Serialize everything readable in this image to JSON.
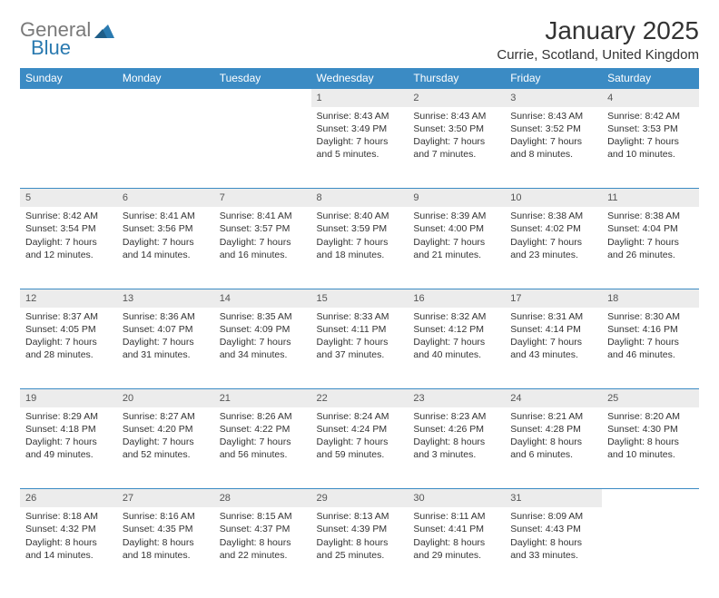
{
  "logo": {
    "word1": "General",
    "word2": "Blue"
  },
  "title": "January 2025",
  "location": "Currie, Scotland, United Kingdom",
  "colors": {
    "header_bg": "#3b8bc4",
    "header_text": "#ffffff",
    "daynum_bg": "#ececec",
    "page_bg": "#ffffff",
    "logo_gray": "#7a7a7a",
    "logo_blue": "#2a7ab0"
  },
  "fonts": {
    "month_title_pt": 28,
    "location_pt": 15,
    "weekday_pt": 12,
    "daynum_pt": 11,
    "body_pt": 10.5
  },
  "weekdays": [
    "Sunday",
    "Monday",
    "Tuesday",
    "Wednesday",
    "Thursday",
    "Friday",
    "Saturday"
  ],
  "weeks": [
    [
      null,
      null,
      null,
      {
        "n": "1",
        "sr": "8:43 AM",
        "ss": "3:49 PM",
        "dl": "7 hours and 5 minutes."
      },
      {
        "n": "2",
        "sr": "8:43 AM",
        "ss": "3:50 PM",
        "dl": "7 hours and 7 minutes."
      },
      {
        "n": "3",
        "sr": "8:43 AM",
        "ss": "3:52 PM",
        "dl": "7 hours and 8 minutes."
      },
      {
        "n": "4",
        "sr": "8:42 AM",
        "ss": "3:53 PM",
        "dl": "7 hours and 10 minutes."
      }
    ],
    [
      {
        "n": "5",
        "sr": "8:42 AM",
        "ss": "3:54 PM",
        "dl": "7 hours and 12 minutes."
      },
      {
        "n": "6",
        "sr": "8:41 AM",
        "ss": "3:56 PM",
        "dl": "7 hours and 14 minutes."
      },
      {
        "n": "7",
        "sr": "8:41 AM",
        "ss": "3:57 PM",
        "dl": "7 hours and 16 minutes."
      },
      {
        "n": "8",
        "sr": "8:40 AM",
        "ss": "3:59 PM",
        "dl": "7 hours and 18 minutes."
      },
      {
        "n": "9",
        "sr": "8:39 AM",
        "ss": "4:00 PM",
        "dl": "7 hours and 21 minutes."
      },
      {
        "n": "10",
        "sr": "8:38 AM",
        "ss": "4:02 PM",
        "dl": "7 hours and 23 minutes."
      },
      {
        "n": "11",
        "sr": "8:38 AM",
        "ss": "4:04 PM",
        "dl": "7 hours and 26 minutes."
      }
    ],
    [
      {
        "n": "12",
        "sr": "8:37 AM",
        "ss": "4:05 PM",
        "dl": "7 hours and 28 minutes."
      },
      {
        "n": "13",
        "sr": "8:36 AM",
        "ss": "4:07 PM",
        "dl": "7 hours and 31 minutes."
      },
      {
        "n": "14",
        "sr": "8:35 AM",
        "ss": "4:09 PM",
        "dl": "7 hours and 34 minutes."
      },
      {
        "n": "15",
        "sr": "8:33 AM",
        "ss": "4:11 PM",
        "dl": "7 hours and 37 minutes."
      },
      {
        "n": "16",
        "sr": "8:32 AM",
        "ss": "4:12 PM",
        "dl": "7 hours and 40 minutes."
      },
      {
        "n": "17",
        "sr": "8:31 AM",
        "ss": "4:14 PM",
        "dl": "7 hours and 43 minutes."
      },
      {
        "n": "18",
        "sr": "8:30 AM",
        "ss": "4:16 PM",
        "dl": "7 hours and 46 minutes."
      }
    ],
    [
      {
        "n": "19",
        "sr": "8:29 AM",
        "ss": "4:18 PM",
        "dl": "7 hours and 49 minutes."
      },
      {
        "n": "20",
        "sr": "8:27 AM",
        "ss": "4:20 PM",
        "dl": "7 hours and 52 minutes."
      },
      {
        "n": "21",
        "sr": "8:26 AM",
        "ss": "4:22 PM",
        "dl": "7 hours and 56 minutes."
      },
      {
        "n": "22",
        "sr": "8:24 AM",
        "ss": "4:24 PM",
        "dl": "7 hours and 59 minutes."
      },
      {
        "n": "23",
        "sr": "8:23 AM",
        "ss": "4:26 PM",
        "dl": "8 hours and 3 minutes."
      },
      {
        "n": "24",
        "sr": "8:21 AM",
        "ss": "4:28 PM",
        "dl": "8 hours and 6 minutes."
      },
      {
        "n": "25",
        "sr": "8:20 AM",
        "ss": "4:30 PM",
        "dl": "8 hours and 10 minutes."
      }
    ],
    [
      {
        "n": "26",
        "sr": "8:18 AM",
        "ss": "4:32 PM",
        "dl": "8 hours and 14 minutes."
      },
      {
        "n": "27",
        "sr": "8:16 AM",
        "ss": "4:35 PM",
        "dl": "8 hours and 18 minutes."
      },
      {
        "n": "28",
        "sr": "8:15 AM",
        "ss": "4:37 PM",
        "dl": "8 hours and 22 minutes."
      },
      {
        "n": "29",
        "sr": "8:13 AM",
        "ss": "4:39 PM",
        "dl": "8 hours and 25 minutes."
      },
      {
        "n": "30",
        "sr": "8:11 AM",
        "ss": "4:41 PM",
        "dl": "8 hours and 29 minutes."
      },
      {
        "n": "31",
        "sr": "8:09 AM",
        "ss": "4:43 PM",
        "dl": "8 hours and 33 minutes."
      },
      null
    ]
  ],
  "labels": {
    "sunrise": "Sunrise:",
    "sunset": "Sunset:",
    "daylight": "Daylight:"
  }
}
